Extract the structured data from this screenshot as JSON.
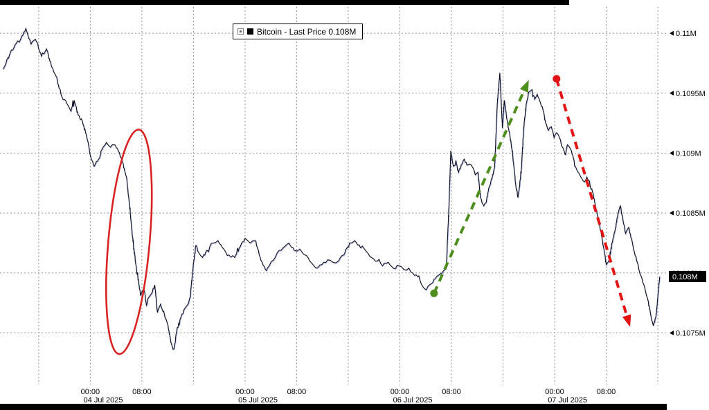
{
  "page": {
    "background": "#ffffff"
  },
  "chrome": {
    "top_bar_color": "#000000",
    "bottom_bar_color": "#000000"
  },
  "legend": {
    "collapse_icon": "box-with-dot",
    "series_swatch_color": "#000000",
    "label": "Bitcoin - Last Price 0.108M"
  },
  "chart_data": {
    "type": "line",
    "title": "Bitcoin - Last Price",
    "legend_label": "Bitcoin - Last Price 0.108M",
    "grid": true,
    "legend_position": "top-center",
    "x_axis": {
      "unit": "hours since 04 Jul 2025 00:00",
      "xlim": [
        -14,
        89.5
      ],
      "gridline_hours": [
        -8,
        0,
        8,
        16,
        24,
        32,
        40,
        48,
        56,
        64,
        72,
        80,
        88
      ],
      "ticks": [
        {
          "t": 0,
          "label": "00:00"
        },
        {
          "t": 8,
          "label": "08:00"
        },
        {
          "t": 24,
          "label": "00:00"
        },
        {
          "t": 32,
          "label": "08:00"
        },
        {
          "t": 48,
          "label": "00:00"
        },
        {
          "t": 56,
          "label": "08:00"
        },
        {
          "t": 72,
          "label": "00:00"
        },
        {
          "t": 80,
          "label": "08:00"
        }
      ],
      "date_labels": [
        {
          "t": 2,
          "label": "04 Jul 2025"
        },
        {
          "t": 26,
          "label": "05 Jul 2025"
        },
        {
          "t": 50,
          "label": "06 Jul 2025"
        },
        {
          "t": 74,
          "label": "07 Jul 2025"
        }
      ]
    },
    "y_axis": {
      "unit": "M",
      "ylim": [
        0.10707,
        0.11022
      ],
      "ticks": [
        {
          "value": 0.1075,
          "label": "0.1075M"
        },
        {
          "value": 0.108,
          "label": "0.108M"
        },
        {
          "value": 0.1085,
          "label": "0.1085M"
        },
        {
          "value": 0.109,
          "label": "0.109M"
        },
        {
          "value": 0.1095,
          "label": "0.1095M"
        },
        {
          "value": 0.11,
          "label": "0.11M"
        }
      ],
      "last_price": {
        "value": 0.10797,
        "label": "0.108M",
        "badge_bg": "#000000",
        "badge_fg": "#ffffff"
      }
    },
    "series": [
      {
        "name": "Bitcoin - Last Price",
        "color": "#0e0e18",
        "points": [
          [
            -13.5,
            0.1097
          ],
          [
            -12.4,
            0.10984
          ],
          [
            -11.7,
            0.1099
          ],
          [
            -10.8,
            0.10995
          ],
          [
            -10.0,
            0.11004
          ],
          [
            -9.2,
            0.10991
          ],
          [
            -8.5,
            0.10995
          ],
          [
            -7.6,
            0.10981
          ],
          [
            -6.8,
            0.10987
          ],
          [
            -6.0,
            0.10972
          ],
          [
            -5.3,
            0.10964
          ],
          [
            -4.4,
            0.10947
          ],
          [
            -3.6,
            0.10941
          ],
          [
            -3.0,
            0.10935
          ],
          [
            -2.5,
            0.10944
          ],
          [
            -1.9,
            0.10932
          ],
          [
            -1.2,
            0.10926
          ],
          [
            -0.5,
            0.10912
          ],
          [
            0.0,
            0.10898
          ],
          [
            0.6,
            0.10889
          ],
          [
            1.3,
            0.10895
          ],
          [
            1.8,
            0.10903
          ],
          [
            2.5,
            0.10909
          ],
          [
            3.1,
            0.10905
          ],
          [
            3.8,
            0.10907
          ],
          [
            4.4,
            0.10901
          ],
          [
            5.0,
            0.10892
          ],
          [
            5.6,
            0.1088
          ],
          [
            6.1,
            0.10855
          ],
          [
            6.5,
            0.10832
          ],
          [
            7.0,
            0.10809
          ],
          [
            7.4,
            0.10794
          ],
          [
            7.8,
            0.10781
          ],
          [
            8.3,
            0.10788
          ],
          [
            8.7,
            0.10773
          ],
          [
            9.1,
            0.1078
          ],
          [
            9.5,
            0.10783
          ],
          [
            10.0,
            0.1079
          ],
          [
            10.4,
            0.10767
          ],
          [
            10.9,
            0.10774
          ],
          [
            11.5,
            0.10765
          ],
          [
            12.0,
            0.10757
          ],
          [
            12.5,
            0.10742
          ],
          [
            13.0,
            0.10737
          ],
          [
            13.4,
            0.10752
          ],
          [
            13.9,
            0.10761
          ],
          [
            14.5,
            0.10769
          ],
          [
            15.0,
            0.10773
          ],
          [
            15.5,
            0.1078
          ],
          [
            16.0,
            0.10809
          ],
          [
            16.4,
            0.10823
          ],
          [
            16.8,
            0.10817
          ],
          [
            17.4,
            0.10813
          ],
          [
            18.1,
            0.10819
          ],
          [
            19.0,
            0.10825
          ],
          [
            19.8,
            0.10827
          ],
          [
            20.7,
            0.1082
          ],
          [
            21.5,
            0.10815
          ],
          [
            22.4,
            0.10813
          ],
          [
            23.1,
            0.10821
          ],
          [
            24.0,
            0.10829
          ],
          [
            24.8,
            0.10825
          ],
          [
            25.6,
            0.10827
          ],
          [
            26.5,
            0.1081
          ],
          [
            27.3,
            0.10802
          ],
          [
            28.2,
            0.1081
          ],
          [
            29.0,
            0.10817
          ],
          [
            29.9,
            0.10821
          ],
          [
            30.8,
            0.10825
          ],
          [
            31.6,
            0.10819
          ],
          [
            32.5,
            0.1082
          ],
          [
            33.3,
            0.10815
          ],
          [
            34.2,
            0.10809
          ],
          [
            35.0,
            0.10804
          ],
          [
            35.9,
            0.10807
          ],
          [
            36.8,
            0.10811
          ],
          [
            37.6,
            0.10809
          ],
          [
            38.5,
            0.1081
          ],
          [
            39.3,
            0.10815
          ],
          [
            40.2,
            0.10825
          ],
          [
            41.0,
            0.10827
          ],
          [
            41.9,
            0.10821
          ],
          [
            42.8,
            0.10818
          ],
          [
            43.6,
            0.10813
          ],
          [
            44.5,
            0.1081
          ],
          [
            45.3,
            0.10806
          ],
          [
            46.2,
            0.10809
          ],
          [
            47.0,
            0.10804
          ],
          [
            47.9,
            0.10806
          ],
          [
            48.6,
            0.10803
          ],
          [
            49.4,
            0.10804
          ],
          [
            50.0,
            0.108
          ],
          [
            50.8,
            0.10797
          ],
          [
            51.4,
            0.1079
          ],
          [
            52.1,
            0.10786
          ],
          [
            52.6,
            0.1079
          ],
          [
            53.1,
            0.10792
          ],
          [
            53.7,
            0.10797
          ],
          [
            54.2,
            0.10799
          ],
          [
            54.8,
            0.10802
          ],
          [
            55.2,
            0.10804
          ],
          [
            55.6,
            0.10855
          ],
          [
            55.9,
            0.10902
          ],
          [
            56.3,
            0.10889
          ],
          [
            56.7,
            0.10894
          ],
          [
            57.1,
            0.10884
          ],
          [
            57.5,
            0.1089
          ],
          [
            58.0,
            0.10895
          ],
          [
            58.4,
            0.1089
          ],
          [
            58.8,
            0.10891
          ],
          [
            59.3,
            0.10888
          ],
          [
            59.7,
            0.10882
          ],
          [
            60.1,
            0.10884
          ],
          [
            60.5,
            0.10863
          ],
          [
            61.0,
            0.10856
          ],
          [
            61.4,
            0.10859
          ],
          [
            61.8,
            0.10871
          ],
          [
            62.3,
            0.10879
          ],
          [
            62.7,
            0.10889
          ],
          [
            63.1,
            0.10941
          ],
          [
            63.5,
            0.10967
          ],
          [
            63.9,
            0.10921
          ],
          [
            64.2,
            0.10944
          ],
          [
            64.6,
            0.10928
          ],
          [
            65.0,
            0.10917
          ],
          [
            65.5,
            0.10898
          ],
          [
            65.9,
            0.10876
          ],
          [
            66.3,
            0.10863
          ],
          [
            66.8,
            0.10883
          ],
          [
            67.2,
            0.10921
          ],
          [
            67.6,
            0.10941
          ],
          [
            68.0,
            0.10951
          ],
          [
            68.5,
            0.10953
          ],
          [
            68.9,
            0.10945
          ],
          [
            69.3,
            0.10949
          ],
          [
            69.8,
            0.10942
          ],
          [
            70.2,
            0.10936
          ],
          [
            70.6,
            0.10925
          ],
          [
            71.0,
            0.10919
          ],
          [
            71.5,
            0.10922
          ],
          [
            71.9,
            0.10913
          ],
          [
            72.3,
            0.10917
          ],
          [
            72.8,
            0.10912
          ],
          [
            73.2,
            0.10905
          ],
          [
            73.6,
            0.10899
          ],
          [
            74.0,
            0.10907
          ],
          [
            74.5,
            0.10903
          ],
          [
            74.9,
            0.10896
          ],
          [
            75.3,
            0.10888
          ],
          [
            75.8,
            0.10883
          ],
          [
            76.2,
            0.10879
          ],
          [
            76.6,
            0.10876
          ],
          [
            77.0,
            0.1088
          ],
          [
            77.5,
            0.10873
          ],
          [
            77.9,
            0.10867
          ],
          [
            78.3,
            0.10857
          ],
          [
            78.8,
            0.10844
          ],
          [
            79.2,
            0.10834
          ],
          [
            79.6,
            0.10821
          ],
          [
            80.0,
            0.10807
          ],
          [
            80.5,
            0.10811
          ],
          [
            80.9,
            0.10825
          ],
          [
            81.3,
            0.10834
          ],
          [
            81.8,
            0.10849
          ],
          [
            82.2,
            0.10856
          ],
          [
            82.6,
            0.10844
          ],
          [
            83.0,
            0.10833
          ],
          [
            83.5,
            0.10838
          ],
          [
            83.9,
            0.10829
          ],
          [
            84.3,
            0.10819
          ],
          [
            84.8,
            0.10809
          ],
          [
            85.2,
            0.108
          ],
          [
            85.6,
            0.10794
          ],
          [
            86.0,
            0.10787
          ],
          [
            86.4,
            0.10779
          ],
          [
            86.9,
            0.10765
          ],
          [
            87.3,
            0.10756
          ],
          [
            87.7,
            0.10763
          ],
          [
            88.0,
            0.1078
          ],
          [
            88.3,
            0.10797
          ]
        ]
      }
    ],
    "annotations": [
      {
        "type": "ellipse",
        "color": "#d92222",
        "center_t": 6.0,
        "center_price": 0.10826,
        "rx_hours": 3.2,
        "ry_price": 0.00094,
        "rotate_deg": 5
      },
      {
        "type": "arrow",
        "color": "#4d8e1d",
        "from_t": 53.3,
        "from_price": 0.10783,
        "to_t": 68.0,
        "to_price": 0.10961
      },
      {
        "type": "arrow",
        "color": "#e21414",
        "from_t": 72.3,
        "from_price": 0.10962,
        "to_t": 83.7,
        "to_price": 0.10755
      }
    ]
  }
}
